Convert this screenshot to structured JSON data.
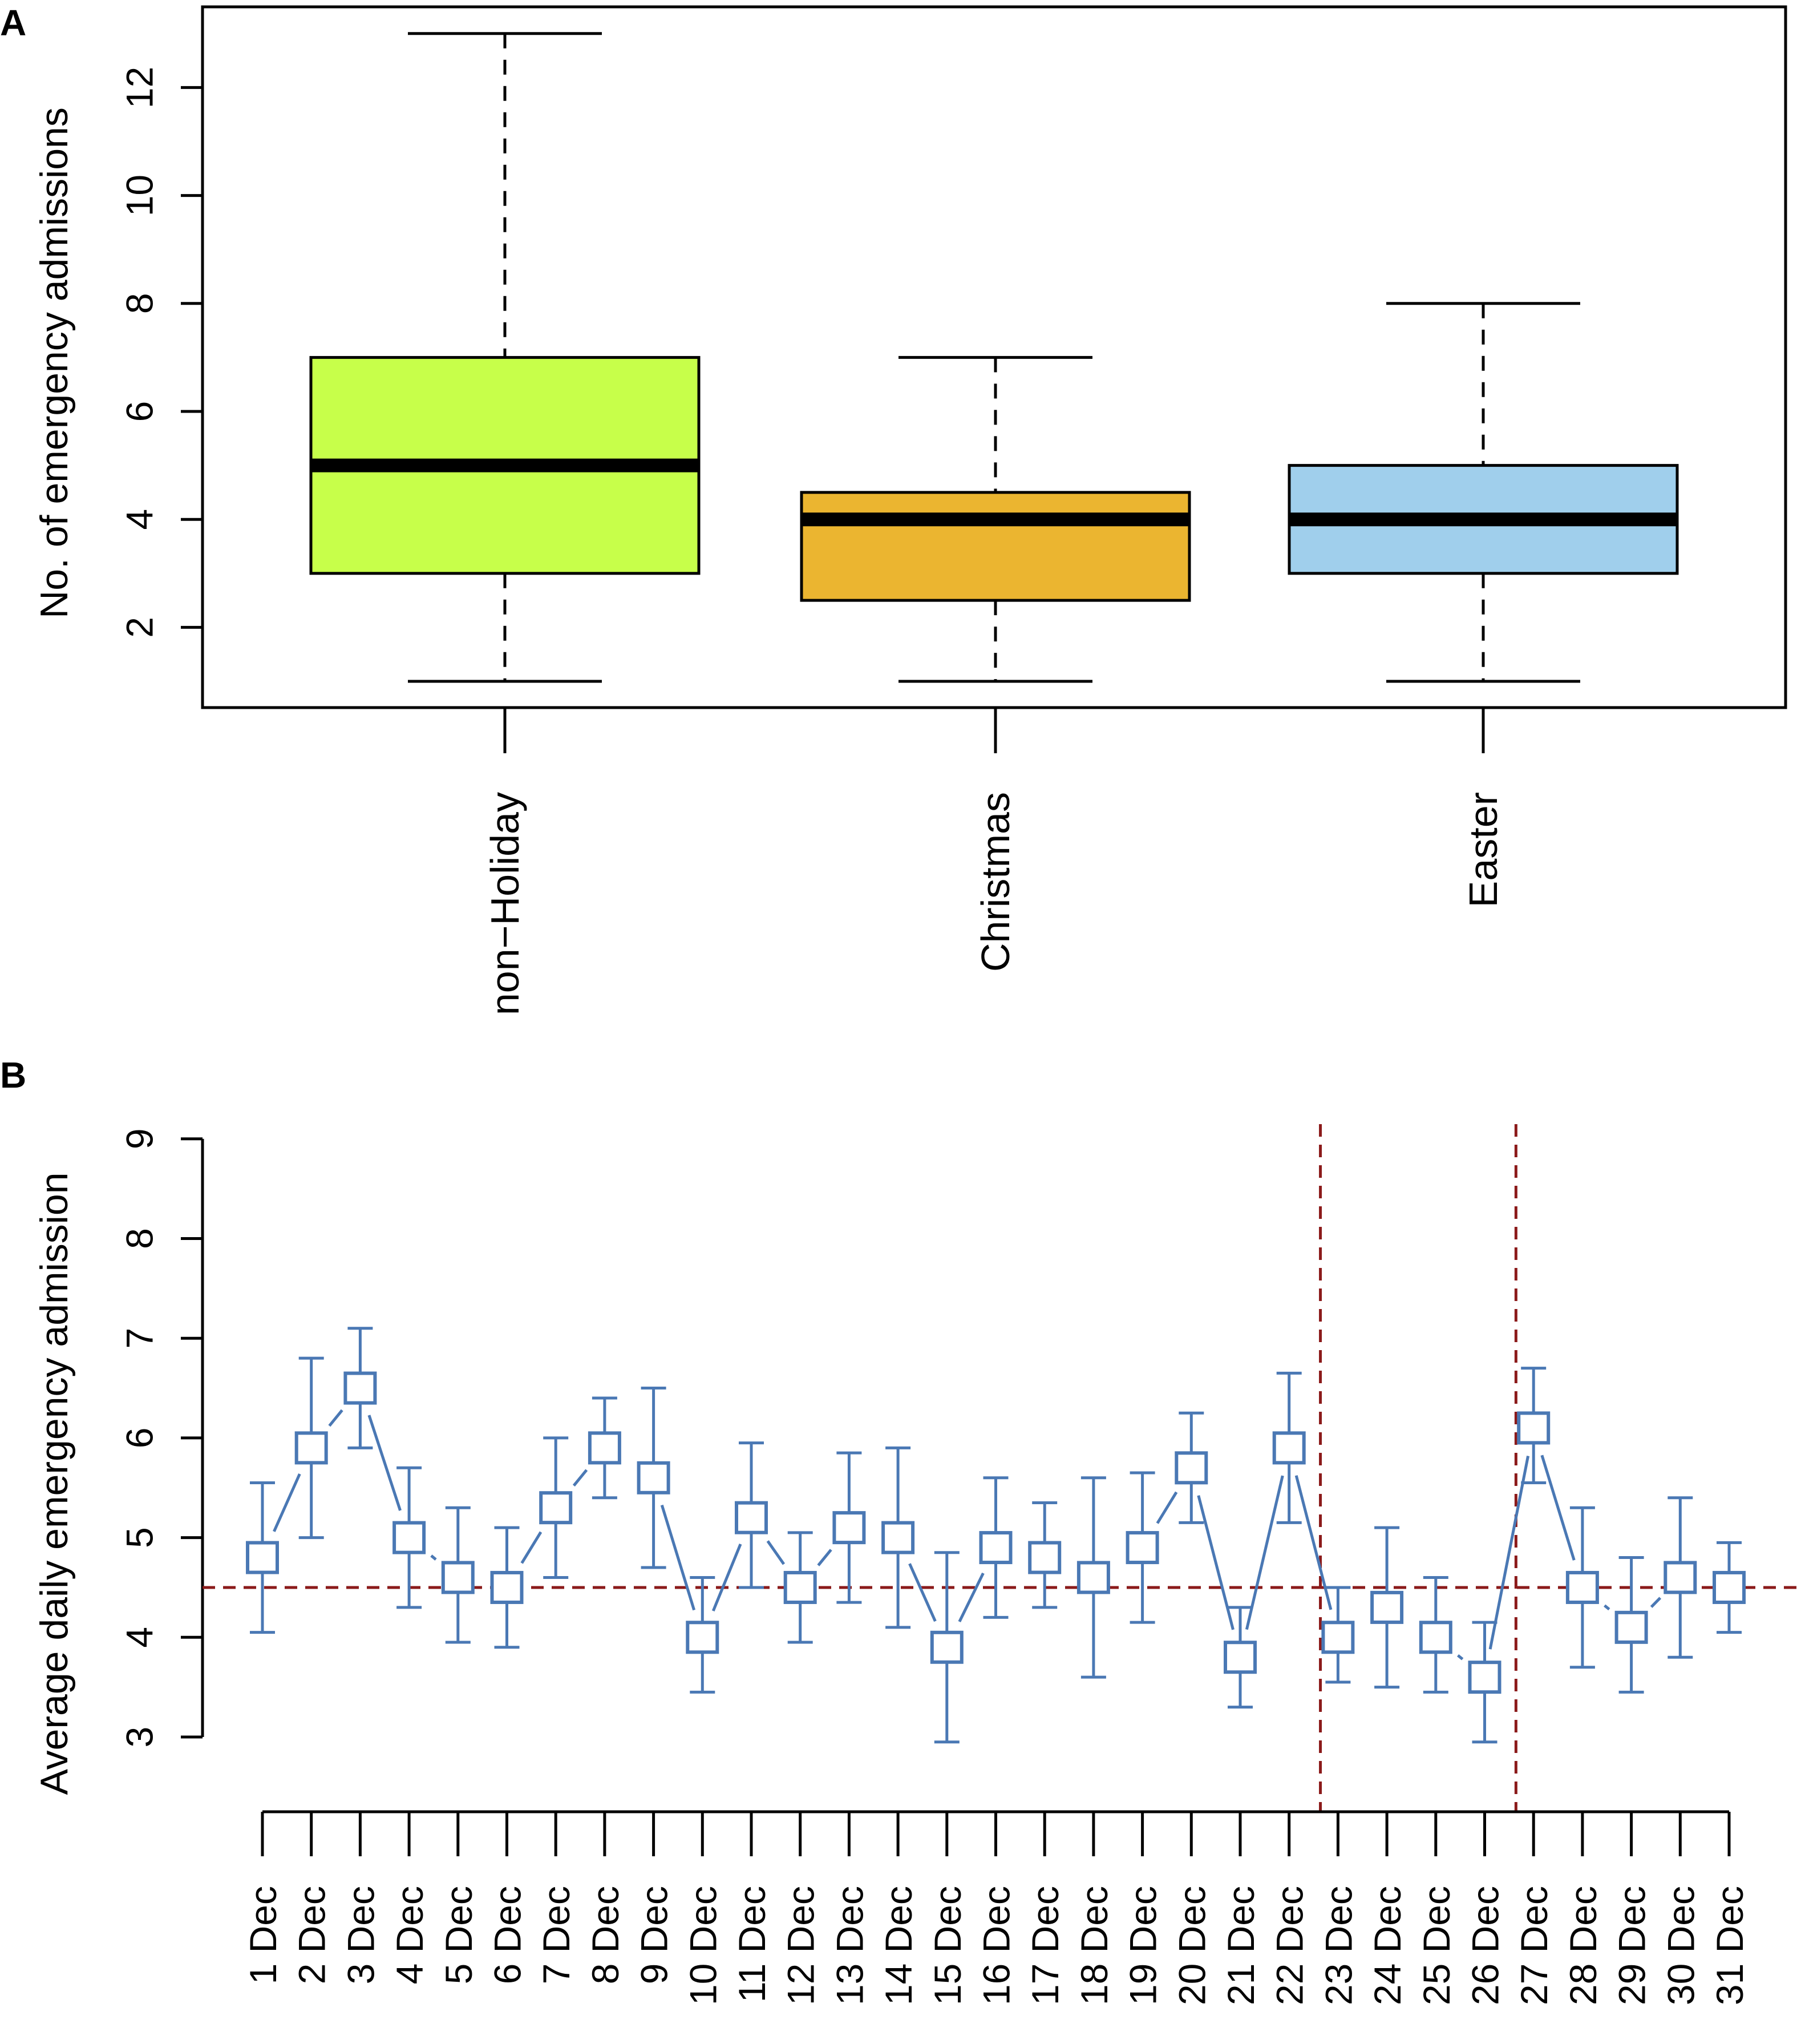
{
  "chart_data": [
    {
      "panel": "A",
      "type": "box",
      "ylabel": "No. of emergency admissions",
      "ylim": [
        0,
        13.5
      ],
      "yticks": [
        2,
        4,
        6,
        8,
        10,
        12
      ],
      "categories": [
        "non−Holiday",
        "Christmas",
        "Easter"
      ],
      "boxes": [
        {
          "name": "non−Holiday",
          "whisker_low": 1,
          "q1": 3,
          "median": 5,
          "q3": 7,
          "whisker_high": 13,
          "color": "#c7ff4a"
        },
        {
          "name": "Christmas",
          "whisker_low": 1,
          "q1": 2.5,
          "median": 4,
          "q3": 4.5,
          "whisker_high": 7,
          "color": "#ebb530"
        },
        {
          "name": "Easter",
          "whisker_low": 1,
          "q1": 3,
          "median": 4,
          "q3": 5,
          "whisker_high": 8,
          "color": "#a0cfec"
        }
      ]
    },
    {
      "panel": "B",
      "type": "line",
      "ylabel": "Average daily emergency admission",
      "ylim": [
        3,
        9
      ],
      "yticks": [
        3,
        4,
        5,
        6,
        7,
        8,
        9
      ],
      "x": [
        "1 Dec",
        "2 Dec",
        "3 Dec",
        "4 Dec",
        "5 Dec",
        "6 Dec",
        "7 Dec",
        "8 Dec",
        "9 Dec",
        "10 Dec",
        "11 Dec",
        "12 Dec",
        "13 Dec",
        "14 Dec",
        "15 Dec",
        "16 Dec",
        "17 Dec",
        "18 Dec",
        "19 Dec",
        "20 Dec",
        "21 Dec",
        "22 Dec",
        "23 Dec",
        "24 Dec",
        "25 Dec",
        "26 Dec",
        "27 Dec",
        "28 Dec",
        "29 Dec",
        "30 Dec",
        "31 Dec"
      ],
      "series": [
        {
          "name": "Average daily emergency admission",
          "values": [
            4.8,
            5.9,
            6.5,
            5.0,
            4.6,
            4.5,
            5.3,
            5.9,
            5.6,
            4.0,
            5.2,
            4.5,
            5.1,
            5.0,
            3.9,
            4.9,
            4.8,
            4.6,
            4.9,
            5.7,
            3.8,
            5.9,
            4.0,
            4.3,
            4.0,
            3.6,
            6.1,
            4.5,
            4.1,
            4.6,
            4.5
          ],
          "lower": [
            4.05,
            5.0,
            5.9,
            4.3,
            3.95,
            3.9,
            4.6,
            5.4,
            4.7,
            3.45,
            4.5,
            3.95,
            4.35,
            4.1,
            2.95,
            4.2,
            4.3,
            3.6,
            4.15,
            5.15,
            3.3,
            5.15,
            3.55,
            3.5,
            3.45,
            2.95,
            5.55,
            3.7,
            3.45,
            3.8,
            4.05
          ],
          "upper": [
            5.55,
            6.8,
            7.1,
            5.7,
            5.3,
            5.1,
            6.0,
            6.4,
            6.5,
            4.6,
            5.95,
            5.05,
            5.85,
            5.9,
            4.85,
            5.6,
            5.35,
            5.6,
            5.65,
            6.25,
            4.3,
            6.65,
            4.5,
            5.1,
            4.6,
            4.15,
            6.7,
            5.3,
            4.8,
            5.4,
            4.95
          ],
          "color": "#4a78b4"
        }
      ],
      "reference_line": {
        "y": 4.5,
        "color": "#8b1a1a"
      },
      "vertical_markers": [
        {
          "after": "22 Dec"
        },
        {
          "after": "26 Dec"
        }
      ]
    }
  ],
  "panel_labels": {
    "a": "A",
    "b": "B"
  }
}
